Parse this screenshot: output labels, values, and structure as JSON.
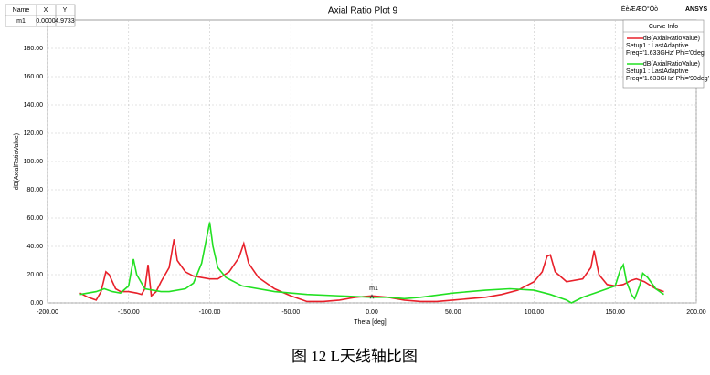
{
  "chart_data": {
    "type": "line",
    "title": "Axial Ratio Plot 9",
    "header_text": "ÉèÆÆÓ°Ôò",
    "vendor": "ANSYS",
    "caption": "图 12 L天线轴比图",
    "xlabel": "Theta [deg]",
    "ylabel": "dB(AxialRatioValue)",
    "xlim": [
      -200,
      200
    ],
    "ylim": [
      0,
      200
    ],
    "xticks": [
      {
        "value": -200,
        "label": "-200.00"
      },
      {
        "value": -150,
        "label": "-150.00"
      },
      {
        "value": -100,
        "label": "-100.00"
      },
      {
        "value": -50,
        "label": "-50.00"
      },
      {
        "value": 0,
        "label": "0.00"
      },
      {
        "value": 50,
        "label": "50.00"
      },
      {
        "value": 100,
        "label": "100.00"
      },
      {
        "value": 150,
        "label": "150.00"
      },
      {
        "value": 200,
        "label": "200.00"
      }
    ],
    "yticks": [
      {
        "value": 0,
        "label": "0.00"
      },
      {
        "value": 20,
        "label": "20.00"
      },
      {
        "value": 40,
        "label": "40.00"
      },
      {
        "value": 60,
        "label": "60.00"
      },
      {
        "value": 80,
        "label": "80.00"
      },
      {
        "value": 100,
        "label": "100.00"
      },
      {
        "value": 120,
        "label": "120.00"
      },
      {
        "value": 140,
        "label": "140.00"
      },
      {
        "value": 160,
        "label": "160.00"
      },
      {
        "value": 180,
        "label": "180.00"
      }
    ],
    "grid": true,
    "legend_title": "Curve Info",
    "legend_position": "top-right",
    "marker_table_headers": [
      "Name",
      "X",
      "Y"
    ],
    "marker": {
      "name": "m1",
      "x": 0,
      "y": 4.9733,
      "x_label": "0.0000",
      "y_label": "4.9733"
    },
    "series": [
      {
        "name": "dB(AxialRatioValue)",
        "color": "#e8202a",
        "details": [
          "Setup1 : LastAdaptive",
          "Freq='1.633GHz' Phi='0deg'"
        ],
        "x": [
          -180,
          -175,
          -170,
          -167,
          -164,
          -162,
          -158,
          -155,
          -150,
          -145,
          -142,
          -140,
          -138,
          -136,
          -133,
          -130,
          -125,
          -122,
          -120,
          -115,
          -110,
          -100,
          -95,
          -88,
          -82,
          -79,
          -76,
          -70,
          -60,
          -50,
          -40,
          -30,
          -20,
          -10,
          0,
          10,
          20,
          30,
          40,
          50,
          60,
          70,
          80,
          90,
          100,
          105,
          108,
          110,
          113,
          120,
          130,
          135,
          137,
          140,
          145,
          150,
          155,
          160,
          163,
          168,
          175,
          180
        ],
        "values": [
          7,
          4,
          2,
          8,
          22,
          20,
          10,
          8,
          8,
          7,
          6,
          10,
          27,
          5,
          8,
          15,
          25,
          45,
          30,
          22,
          19,
          17,
          17,
          22,
          32,
          42,
          28,
          18,
          10,
          5,
          1,
          1,
          2,
          4,
          5,
          4,
          2,
          1,
          1,
          2,
          3,
          4,
          6,
          9,
          15,
          22,
          33,
          34,
          22,
          15,
          17,
          25,
          37,
          20,
          13,
          12,
          13,
          16,
          17,
          15,
          10,
          8
        ]
      },
      {
        "name": "dB(AxialRatioValue)",
        "color": "#22e022",
        "details": [
          "Setup1 : LastAdaptive",
          "Freq='1.633GHz' Phi='90deg'"
        ],
        "x": [
          -180,
          -170,
          -165,
          -160,
          -155,
          -150,
          -147,
          -145,
          -140,
          -135,
          -130,
          -125,
          -115,
          -110,
          -105,
          -100,
          -98,
          -95,
          -90,
          -80,
          -60,
          -40,
          -20,
          0,
          10,
          20,
          30,
          50,
          70,
          85,
          100,
          110,
          120,
          123,
          130,
          140,
          150,
          153,
          155,
          157,
          160,
          162,
          165,
          167,
          170,
          175,
          180
        ],
        "values": [
          6,
          8,
          10,
          8,
          7,
          12,
          31,
          20,
          10,
          9,
          8,
          8,
          10,
          14,
          28,
          57,
          40,
          25,
          18,
          12,
          8,
          6,
          5,
          4,
          4,
          3,
          4,
          7,
          9,
          10,
          9,
          6,
          2,
          0,
          4,
          8,
          12,
          23,
          27,
          15,
          6,
          3,
          12,
          21,
          18,
          10,
          6
        ]
      }
    ]
  }
}
